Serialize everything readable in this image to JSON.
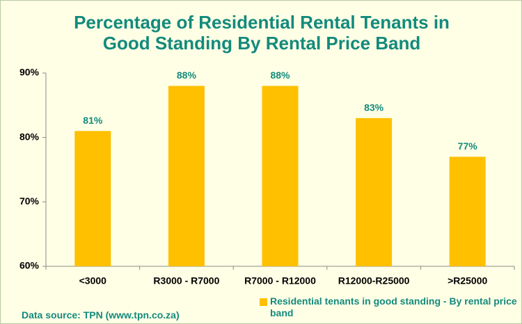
{
  "chart_data": {
    "type": "bar",
    "title": "Percentage of Residential Rental Tenants in Good Standing By Rental Price Band",
    "categories": [
      "<3000",
      "R3000 - R7000",
      "R7000 - R12000",
      "R12000-R25000",
      ">R25000"
    ],
    "series": [
      {
        "name": "Residential tenants in good standing - By rental price band",
        "color": "#ffc000",
        "values": [
          81,
          88,
          88,
          83,
          77
        ],
        "value_labels": [
          "81%",
          "88%",
          "88%",
          "83%",
          "77%"
        ]
      }
    ],
    "ylim": [
      60,
      90
    ],
    "yticks": [
      {
        "value": 60,
        "label": "60%"
      },
      {
        "value": 70,
        "label": "70%"
      },
      {
        "value": 80,
        "label": "80%"
      },
      {
        "value": 90,
        "label": "90%"
      }
    ],
    "grid": false,
    "legend": "bottom-right",
    "source": "Data source: TPN (www.tpn.co.za)"
  }
}
